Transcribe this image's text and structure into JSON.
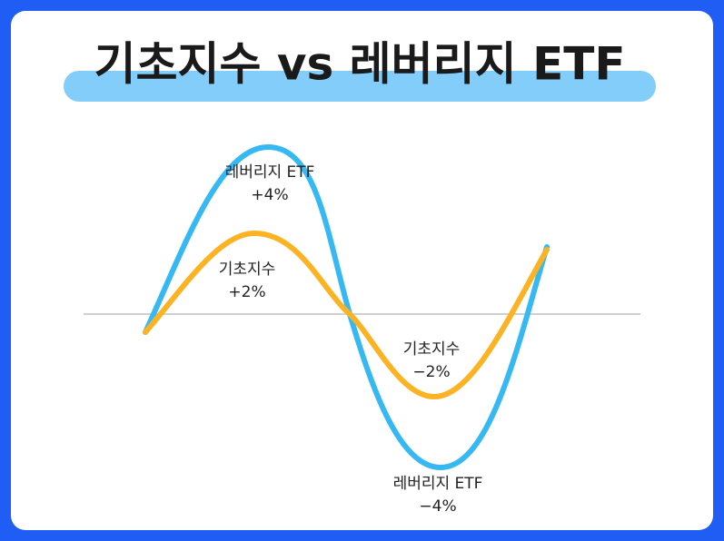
{
  "title": "기초지수 vs 레버리지 ETF",
  "annotations": [
    {
      "name": "레버리지 ETF",
      "change": "+4%"
    },
    {
      "name": "기초지수",
      "change": "+2%"
    },
    {
      "name": "기초지수",
      "change": "−2%"
    },
    {
      "name": "레버리지 ETF",
      "change": "−4%"
    }
  ]
}
